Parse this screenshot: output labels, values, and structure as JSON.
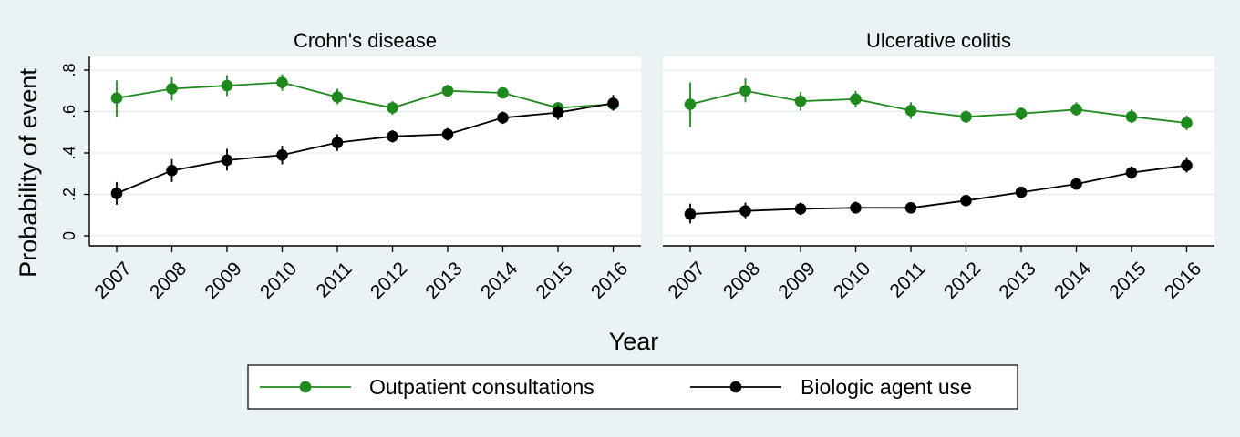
{
  "chart_data": {
    "type": "line",
    "ylabel": "Probability of event",
    "xlabel": "Year",
    "ylim": [
      0,
      0.8
    ],
    "y_ticks": [
      0,
      0.2,
      0.4,
      0.6,
      0.8
    ],
    "y_tick_labels": [
      "0",
      ".2",
      ".4",
      ".6",
      ".8"
    ],
    "x": [
      "2007",
      "2008",
      "2009",
      "2010",
      "2011",
      "2012",
      "2013",
      "2014",
      "2015",
      "2016"
    ],
    "grid": true,
    "legend_position": "bottom",
    "legend": [
      {
        "name": "Outpatient consultations",
        "color": "#1e8a1e"
      },
      {
        "name": "Biologic agent use",
        "color": "#000000"
      }
    ],
    "panels": [
      {
        "title": "Crohn's disease",
        "series": [
          {
            "name": "Outpatient consultations",
            "color": "#1e8a1e",
            "values": [
              0.665,
              0.71,
              0.725,
              0.74,
              0.67,
              0.618,
              0.7,
              0.69,
              0.618,
              0.635
            ],
            "lower": [
              0.575,
              0.655,
              0.675,
              0.7,
              0.635,
              0.585,
              0.675,
              0.665,
              0.59,
              0.605
            ],
            "upper": [
              0.75,
              0.765,
              0.775,
              0.78,
              0.71,
              0.65,
              0.73,
              0.715,
              0.645,
              0.665
            ]
          },
          {
            "name": "Biologic agent use",
            "color": "#000000",
            "values": [
              0.205,
              0.315,
              0.365,
              0.39,
              0.45,
              0.48,
              0.49,
              0.57,
              0.595,
              0.64
            ],
            "lower": [
              0.15,
              0.26,
              0.315,
              0.345,
              0.41,
              0.45,
              0.46,
              0.54,
              0.56,
              0.605
            ],
            "upper": [
              0.26,
              0.37,
              0.42,
              0.435,
              0.49,
              0.51,
              0.52,
              0.6,
              0.63,
              0.68
            ]
          }
        ]
      },
      {
        "title": "Ulcerative colitis",
        "series": [
          {
            "name": "Outpatient consultations",
            "color": "#1e8a1e",
            "values": [
              0.635,
              0.7,
              0.65,
              0.66,
              0.605,
              0.575,
              0.59,
              0.61,
              0.575,
              0.545
            ],
            "lower": [
              0.525,
              0.645,
              0.605,
              0.62,
              0.565,
              0.545,
              0.56,
              0.58,
              0.545,
              0.51
            ],
            "upper": [
              0.74,
              0.76,
              0.695,
              0.7,
              0.645,
              0.605,
              0.62,
              0.645,
              0.61,
              0.58
            ]
          },
          {
            "name": "Biologic agent use",
            "color": "#000000",
            "values": [
              0.105,
              0.12,
              0.13,
              0.135,
              0.135,
              0.17,
              0.21,
              0.25,
              0.305,
              0.34
            ],
            "lower": [
              0.06,
              0.085,
              0.1,
              0.11,
              0.115,
              0.15,
              0.19,
              0.225,
              0.275,
              0.305
            ],
            "upper": [
              0.155,
              0.16,
              0.16,
              0.165,
              0.155,
              0.19,
              0.235,
              0.275,
              0.335,
              0.38
            ]
          }
        ]
      }
    ]
  }
}
